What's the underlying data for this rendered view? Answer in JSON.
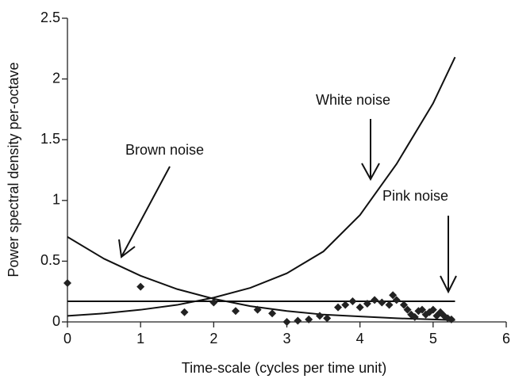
{
  "chart_data": {
    "type": "line",
    "xlabel": "Time-scale (cycles per time unit)",
    "ylabel": "Power spectral density per-octave",
    "xlim": [
      0,
      6
    ],
    "xticks": [
      0,
      1,
      2,
      3,
      4,
      5,
      6
    ],
    "ylim": [
      0,
      2.5
    ],
    "yticks": [
      0,
      0.5,
      1,
      1.5,
      2,
      2.5
    ],
    "series": [
      {
        "name": "Brown noise",
        "color": "#111111",
        "x": [
          0,
          0.5,
          1,
          1.5,
          2,
          2.5,
          3,
          3.5,
          4,
          4.5,
          5,
          5.3
        ],
        "values": [
          0.7,
          0.52,
          0.38,
          0.27,
          0.19,
          0.13,
          0.09,
          0.06,
          0.045,
          0.03,
          0.02,
          0.015
        ]
      },
      {
        "name": "White noise",
        "color": "#111111",
        "x": [
          0,
          0.5,
          1,
          1.5,
          2,
          2.5,
          3,
          3.5,
          4,
          4.5,
          5,
          5.3
        ],
        "values": [
          0.05,
          0.07,
          0.1,
          0.14,
          0.2,
          0.28,
          0.4,
          0.58,
          0.88,
          1.3,
          1.8,
          2.18
        ]
      },
      {
        "name": "Pink noise",
        "color": "#111111",
        "x": [
          0,
          5.3
        ],
        "values": [
          0.17,
          0.17
        ]
      },
      {
        "type": "scatter",
        "color": "#222222",
        "x": [
          0,
          1,
          1.6,
          2,
          2.3,
          2.6,
          2.8,
          3,
          3.15,
          3.3,
          3.45,
          3.55,
          3.7,
          3.8,
          3.9,
          4.0,
          4.1,
          4.2,
          4.3,
          4.4,
          4.45,
          4.5,
          4.6,
          4.65,
          4.7,
          4.75,
          4.8,
          4.85,
          4.9,
          4.95,
          5.0,
          5.05,
          5.1,
          5.15,
          5.2,
          5.25
        ],
        "values": [
          0.32,
          0.29,
          0.08,
          0.16,
          0.09,
          0.1,
          0.07,
          0.0,
          0.01,
          0.02,
          0.05,
          0.03,
          0.12,
          0.14,
          0.17,
          0.12,
          0.15,
          0.18,
          0.16,
          0.14,
          0.22,
          0.18,
          0.14,
          0.1,
          0.06,
          0.04,
          0.09,
          0.1,
          0.06,
          0.08,
          0.1,
          0.05,
          0.08,
          0.05,
          0.03,
          0.02
        ]
      }
    ]
  }
}
